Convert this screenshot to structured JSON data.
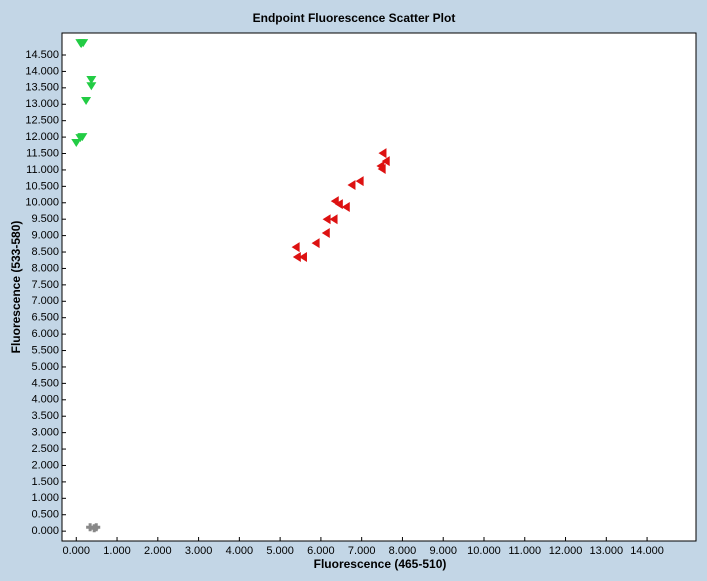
{
  "chart_data": {
    "type": "scatter",
    "title": "Endpoint Fluorescence Scatter Plot",
    "x_label": "Fluorescence (465-510)",
    "y_label": "Fluorescence (533-580)",
    "xlim": [
      -0.35,
      15.2
    ],
    "ylim": [
      -0.3,
      15.17
    ],
    "xticks": [
      {
        "value": 0,
        "label": "0.000"
      },
      {
        "value": 1,
        "label": "1.000"
      },
      {
        "value": 2,
        "label": "2.000"
      },
      {
        "value": 3,
        "label": "3.000"
      },
      {
        "value": 4,
        "label": "4.000"
      },
      {
        "value": 5,
        "label": "5.000"
      },
      {
        "value": 6,
        "label": "6.000"
      },
      {
        "value": 7,
        "label": "7.000"
      },
      {
        "value": 8,
        "label": "8.000"
      },
      {
        "value": 9,
        "label": "9.000"
      },
      {
        "value": 10,
        "label": "10.000"
      },
      {
        "value": 11,
        "label": "11.000"
      },
      {
        "value": 12,
        "label": "12.000"
      },
      {
        "value": 13,
        "label": "13.000"
      },
      {
        "value": 14,
        "label": "14.000"
      }
    ],
    "yticks": [
      {
        "value": 0,
        "label": "0.000"
      },
      {
        "value": 0.5,
        "label": "0.500"
      },
      {
        "value": 1,
        "label": "1.000"
      },
      {
        "value": 1.5,
        "label": "1.500"
      },
      {
        "value": 2,
        "label": "2.000"
      },
      {
        "value": 2.5,
        "label": "2.500"
      },
      {
        "value": 3,
        "label": "3.000"
      },
      {
        "value": 3.5,
        "label": "3.500"
      },
      {
        "value": 4,
        "label": "4.000"
      },
      {
        "value": 4.5,
        "label": "4.500"
      },
      {
        "value": 5,
        "label": "5.000"
      },
      {
        "value": 5.5,
        "label": "5.500"
      },
      {
        "value": 6,
        "label": "6.000"
      },
      {
        "value": 6.5,
        "label": "6.500"
      },
      {
        "value": 7,
        "label": "7.000"
      },
      {
        "value": 7.5,
        "label": "7.500"
      },
      {
        "value": 8,
        "label": "8.000"
      },
      {
        "value": 8.5,
        "label": "8.500"
      },
      {
        "value": 9,
        "label": "9.000"
      },
      {
        "value": 9.5,
        "label": "9.500"
      },
      {
        "value": 10,
        "label": "10.000"
      },
      {
        "value": 10.5,
        "label": "10.500"
      },
      {
        "value": 11,
        "label": "11.000"
      },
      {
        "value": 11.5,
        "label": "11.500"
      },
      {
        "value": 12,
        "label": "12.000"
      },
      {
        "value": 12.5,
        "label": "12.500"
      },
      {
        "value": 13,
        "label": "13.000"
      },
      {
        "value": 13.5,
        "label": "13.500"
      },
      {
        "value": 14,
        "label": "14.000"
      },
      {
        "value": 14.5,
        "label": "14.500"
      }
    ],
    "series": [
      {
        "color": "#22cc44",
        "marker": "triangle-down",
        "x": [
          0.1,
          0.17,
          0.12,
          0.37,
          0.37,
          0.24,
          0.15,
          0.1,
          0.0
        ],
        "values": [
          14.86,
          14.86,
          14.83,
          13.74,
          13.55,
          13.1,
          12.0,
          11.97,
          11.82
        ]
      },
      {
        "color": "#dd1111",
        "marker": "triangle-left",
        "x": [
          7.51,
          7.59,
          7.46,
          7.49,
          6.95,
          6.75,
          6.34,
          6.44,
          6.61,
          6.31,
          6.14,
          6.12,
          5.87,
          5.38,
          5.56,
          5.41
        ],
        "values": [
          11.51,
          11.27,
          11.12,
          11.03,
          10.66,
          10.54,
          10.05,
          9.96,
          9.87,
          9.5,
          9.5,
          9.08,
          8.77,
          8.65,
          8.35,
          8.35
        ]
      },
      {
        "color": "#888888",
        "marker": "cross",
        "x": [
          0.34,
          0.49,
          0.44
        ],
        "values": [
          0.12,
          0.12,
          0.09
        ]
      }
    ]
  }
}
